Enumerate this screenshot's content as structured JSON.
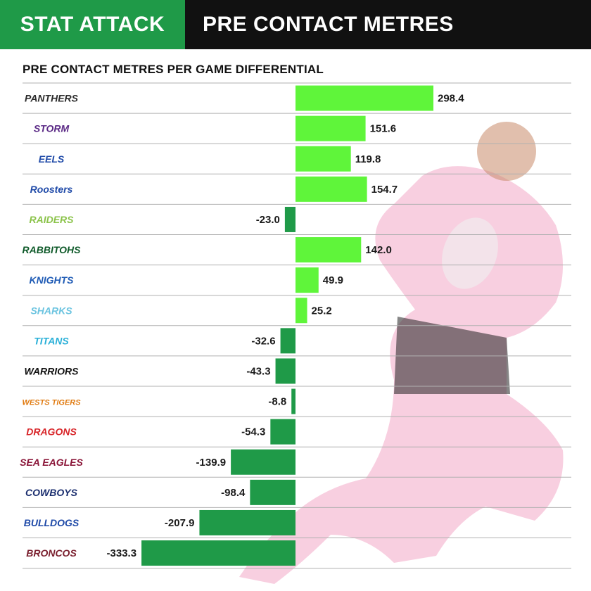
{
  "header": {
    "tag": "STAT ATTACK",
    "title": "PRE CONTACT METRES"
  },
  "colors": {
    "header_green": "#1f9a48",
    "header_black": "#111111",
    "positive_bar": "#5ff53a",
    "negative_bar": "#1f9a48"
  },
  "chart_data": {
    "type": "bar",
    "orientation": "horizontal",
    "title": "PRE CONTACT METRES PER GAME DIFFERENTIAL",
    "categories": [
      "PANTHERS",
      "STORM",
      "EELS",
      "Roosters",
      "RAIDERS",
      "RABBITOHS",
      "KNIGHTS",
      "SHARKS",
      "TITANS",
      "WARRIORS",
      "WESTS TIGERS",
      "DRAGONS",
      "SEA EAGLES",
      "COWBOYS",
      "BULLDOGS",
      "BRONCOS"
    ],
    "values": [
      298.4,
      151.6,
      119.8,
      154.7,
      -23.0,
      142.0,
      49.9,
      25.2,
      -32.6,
      -43.3,
      -8.8,
      -54.3,
      -139.9,
      -98.4,
      -207.9,
      -333.3
    ],
    "team_colors": [
      "#2b2b2b",
      "#5b2a86",
      "#1f4aa8",
      "#1f4aa8",
      "#8bc34a",
      "#0f5a2a",
      "#1f5bb5",
      "#6cc4e0",
      "#2ab0d8",
      "#111111",
      "#e07a10",
      "#d8262a",
      "#8a1538",
      "#1a2d6e",
      "#1f4aa8",
      "#7a1f2e"
    ],
    "grid": true
  }
}
